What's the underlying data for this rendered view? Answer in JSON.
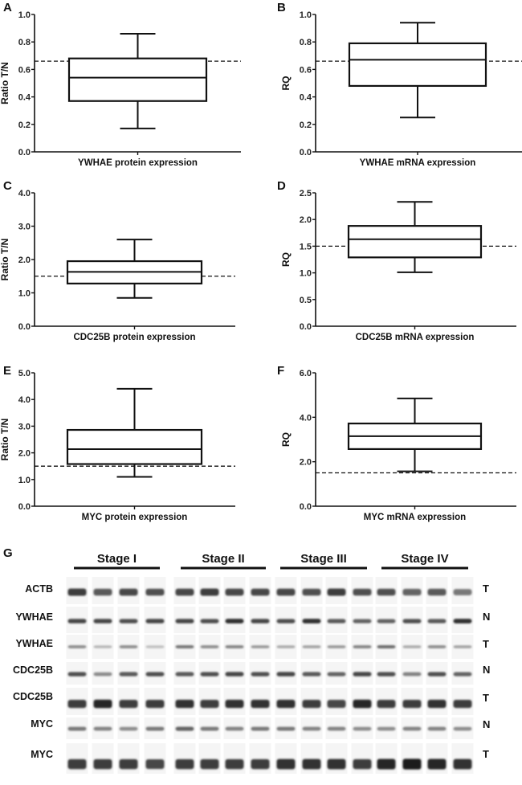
{
  "chart_data": [
    {
      "type": "box",
      "panel": "A",
      "ylabel": "Ratio T/N",
      "xlabel": "YWHAE protein expression",
      "ylim": [
        0,
        1.0
      ],
      "yticks": [
        "0.0",
        "0.2",
        "0.4",
        "0.6",
        "0.8",
        "1.0"
      ],
      "ytick_values": [
        0,
        0.2,
        0.4,
        0.6,
        0.8,
        1.0
      ],
      "whisker_low": 0.17,
      "q1": 0.37,
      "median": 0.54,
      "q3": 0.68,
      "whisker_high": 0.86,
      "reference_line": 0.66
    },
    {
      "type": "box",
      "panel": "B",
      "ylabel": "RQ",
      "xlabel": "YWHAE mRNA expression",
      "ylim": [
        0,
        1.0
      ],
      "yticks": [
        "0.0",
        "0.2",
        "0.4",
        "0.6",
        "0.8",
        "1.0"
      ],
      "ytick_values": [
        0,
        0.2,
        0.4,
        0.6,
        0.8,
        1.0
      ],
      "whisker_low": 0.25,
      "q1": 0.48,
      "median": 0.67,
      "q3": 0.79,
      "whisker_high": 0.94,
      "reference_line": 0.66
    },
    {
      "type": "box",
      "panel": "C",
      "ylabel": "Ratio T/N",
      "xlabel": "CDC25B protein expression",
      "ylim": [
        0,
        4.0
      ],
      "yticks": [
        "0.0",
        "1.0",
        "2.0",
        "3.0",
        "4.0"
      ],
      "ytick_values": [
        0,
        1,
        2,
        3,
        4
      ],
      "whisker_low": 0.85,
      "q1": 1.28,
      "median": 1.63,
      "q3": 1.95,
      "whisker_high": 2.6,
      "reference_line": 1.5
    },
    {
      "type": "box",
      "panel": "D",
      "ylabel": "RQ",
      "xlabel": "CDC25B mRNA expression",
      "ylim": [
        0,
        2.5
      ],
      "yticks": [
        "0.0",
        "0.5",
        "1.0",
        "1.5",
        "2.0",
        "2.5"
      ],
      "ytick_values": [
        0,
        0.5,
        1.0,
        1.5,
        2.0,
        2.5
      ],
      "whisker_low": 1.01,
      "q1": 1.29,
      "median": 1.63,
      "q3": 1.88,
      "whisker_high": 2.33,
      "reference_line": 1.5
    },
    {
      "type": "box",
      "panel": "E",
      "ylabel": "Ratio T/N",
      "xlabel": "MYC protein expression",
      "ylim": [
        0,
        5.0
      ],
      "yticks": [
        "0.0",
        "1.0",
        "2.0",
        "3.0",
        "4.0",
        "5.0"
      ],
      "ytick_values": [
        0,
        1,
        2,
        3,
        4,
        5
      ],
      "whisker_low": 1.1,
      "q1": 1.58,
      "median": 2.14,
      "q3": 2.86,
      "whisker_high": 4.4,
      "reference_line": 1.5
    },
    {
      "type": "box",
      "panel": "F",
      "ylabel": "RQ",
      "xlabel": "MYC mRNA expression",
      "ylim": [
        0,
        6.0
      ],
      "yticks": [
        "0.0",
        "2.0",
        "4.0",
        "6.0"
      ],
      "ytick_values": [
        0,
        2,
        4,
        6
      ],
      "whisker_low": 1.57,
      "q1": 2.57,
      "median": 3.15,
      "q3": 3.72,
      "whisker_high": 4.85,
      "reference_line": 1.5
    }
  ],
  "blot": {
    "panel": "G",
    "stages": [
      "Stage I",
      "Stage II",
      "Stage III",
      "Stage IV"
    ],
    "lanes_per_stage": 4,
    "rows": [
      {
        "label": "ACTB",
        "tissue": "T",
        "intensity": [
          0.85,
          0.7,
          0.8,
          0.75,
          0.8,
          0.85,
          0.8,
          0.8,
          0.8,
          0.75,
          0.85,
          0.75,
          0.75,
          0.65,
          0.7,
          0.55
        ]
      },
      {
        "label": "YWHAE",
        "tissue": "N",
        "intensity": [
          0.8,
          0.8,
          0.75,
          0.8,
          0.8,
          0.75,
          0.9,
          0.8,
          0.75,
          0.9,
          0.7,
          0.65,
          0.65,
          0.75,
          0.7,
          0.9
        ]
      },
      {
        "label": "YWHAE",
        "tissue": "T",
        "intensity": [
          0.45,
          0.25,
          0.45,
          0.2,
          0.55,
          0.45,
          0.5,
          0.4,
          0.3,
          0.35,
          0.4,
          0.5,
          0.6,
          0.3,
          0.45,
          0.35
        ]
      },
      {
        "label": "CDC25B",
        "tissue": "N",
        "intensity": [
          0.75,
          0.45,
          0.7,
          0.75,
          0.7,
          0.75,
          0.8,
          0.75,
          0.8,
          0.7,
          0.65,
          0.8,
          0.75,
          0.5,
          0.75,
          0.65
        ]
      },
      {
        "label": "CDC25B",
        "tissue": "T",
        "intensity": [
          0.85,
          0.95,
          0.85,
          0.85,
          0.9,
          0.85,
          0.9,
          0.9,
          0.9,
          0.85,
          0.8,
          0.95,
          0.85,
          0.85,
          0.9,
          0.85
        ]
      },
      {
        "label": "MYC",
        "tissue": "N",
        "intensity": [
          0.55,
          0.5,
          0.45,
          0.55,
          0.65,
          0.55,
          0.5,
          0.55,
          0.55,
          0.5,
          0.5,
          0.45,
          0.45,
          0.5,
          0.5,
          0.45
        ]
      },
      {
        "label": "MYC",
        "tissue": "T",
        "intensity": [
          0.85,
          0.85,
          0.85,
          0.8,
          0.85,
          0.85,
          0.85,
          0.85,
          0.9,
          0.9,
          0.9,
          0.85,
          0.95,
          1.0,
          0.95,
          0.9
        ]
      }
    ]
  }
}
